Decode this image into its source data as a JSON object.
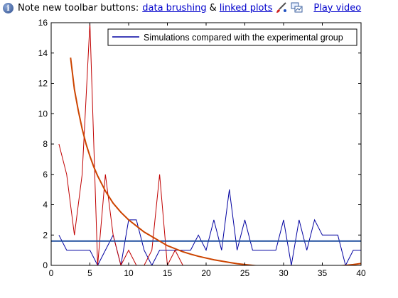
{
  "infobar": {
    "note_text": "Note new toolbar buttons:",
    "link_brushing": "data brushing",
    "amp": "&",
    "link_linked": "linked plots",
    "link_video": "Play video"
  },
  "chart_data": {
    "type": "line",
    "xlim": [
      0,
      40
    ],
    "ylim": [
      0,
      16
    ],
    "x_ticks": [
      0,
      5,
      10,
      15,
      20,
      25,
      30,
      35,
      40
    ],
    "y_ticks": [
      0,
      2,
      4,
      6,
      8,
      10,
      12,
      14,
      16
    ],
    "legend": {
      "placement": "top-right",
      "entries": [
        "Simulations compared with the experimental group"
      ]
    },
    "series": [
      {
        "name": "Simulations compared with the experimental group",
        "color": "#0000a0",
        "x": [
          1,
          2,
          3,
          4,
          5,
          6,
          7,
          8,
          9,
          10,
          11,
          12,
          13,
          14,
          15,
          16,
          17,
          18,
          19,
          20,
          21,
          22,
          23,
          24,
          25,
          26,
          27,
          28,
          29,
          30,
          31,
          32,
          33,
          34,
          35,
          36,
          37,
          38,
          39,
          40
        ],
        "y": [
          2,
          1,
          1,
          1,
          1,
          0,
          1,
          2,
          0,
          3,
          3,
          1,
          0,
          1,
          1,
          1,
          1,
          1,
          2,
          1,
          3,
          1,
          5,
          1,
          3,
          1,
          1,
          1,
          1,
          3,
          0,
          3,
          1,
          3,
          2,
          2,
          2,
          0,
          1,
          1
        ]
      },
      {
        "color": "#c00000",
        "x": [
          1,
          2,
          3,
          4,
          5,
          6,
          7,
          8,
          9,
          10,
          11,
          12,
          13,
          14,
          15,
          16,
          17
        ],
        "y": [
          8,
          6,
          2,
          6,
          16,
          0,
          6,
          2,
          0,
          1,
          0,
          0,
          1,
          6,
          0,
          1,
          0
        ]
      },
      {
        "color": "#1f4e9e",
        "x": [
          0,
          40
        ],
        "y": [
          1.6,
          1.6
        ]
      },
      {
        "color": "#cc4400",
        "fit": "exponential",
        "x": [
          2.5,
          3,
          3.5,
          4,
          4.5,
          5,
          5.5,
          6,
          7,
          8,
          9,
          10,
          11,
          12,
          13,
          14,
          15,
          16,
          17,
          18,
          19,
          20,
          21,
          22,
          23,
          24,
          25,
          26,
          27,
          28,
          29,
          30,
          31,
          32,
          33,
          34,
          35,
          36,
          37,
          38,
          39,
          40
        ],
        "y": [
          13.7,
          11.6,
          10.2,
          9.0,
          8.0,
          7.2,
          6.5,
          5.9,
          4.9,
          4.1,
          3.5,
          3.0,
          2.6,
          2.2,
          1.9,
          1.6,
          1.3,
          1.1,
          0.9,
          0.74,
          0.6,
          0.48,
          0.37,
          0.28,
          0.19,
          0.11,
          0.05,
          0.0,
          -0.05,
          -0.08,
          -0.1,
          -0.12,
          -0.13,
          -0.13,
          -0.12,
          -0.11,
          -0.09,
          -0.07,
          -0.04,
          0.0,
          0.05,
          0.12
        ]
      }
    ]
  }
}
